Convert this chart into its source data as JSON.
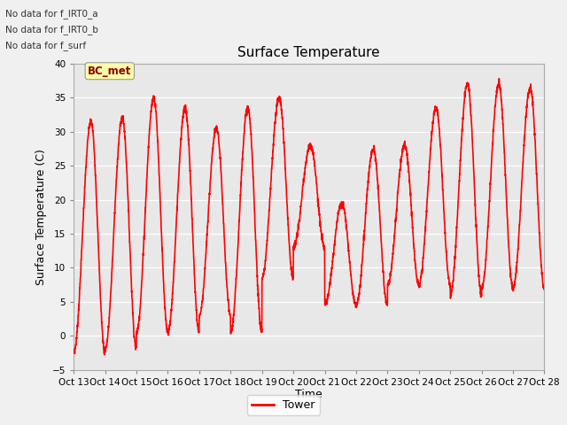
{
  "title": "Surface Temperature",
  "xlabel": "Time",
  "ylabel": "Surface Temperature (C)",
  "ylim": [
    -5,
    40
  ],
  "yticks": [
    -5,
    0,
    5,
    10,
    15,
    20,
    25,
    30,
    35,
    40
  ],
  "line_color": "#ff0000",
  "line_width": 1.2,
  "bg_color": "#f0f0f0",
  "plot_bg_color": "#e8e8e8",
  "legend_label": "Tower",
  "annotations_text": [
    "No data for f_IRT0_a",
    "No data for f_IRT0_b",
    "No data for f_surf"
  ],
  "bc_met_label": "BC_met",
  "x_tick_labels": [
    "Oct 13",
    "Oct 14",
    "Oct 15",
    "Oct 16",
    "Oct 17",
    "Oct 18",
    "Oct 19",
    "Oct 20",
    "Oct 21",
    "Oct 22",
    "Oct 23",
    "Oct 24",
    "Oct 25",
    "Oct 26",
    "Oct 27",
    "Oct 28"
  ],
  "x_tick_positions": [
    0,
    1,
    2,
    3,
    4,
    5,
    6,
    7,
    8,
    9,
    10,
    11,
    12,
    13,
    14,
    15
  ],
  "day_peaks": [
    31.5,
    32.0,
    35.0,
    33.5,
    30.5,
    33.5,
    35.0,
    28.0,
    19.5,
    27.5,
    28.0,
    33.5,
    37.0,
    37.0,
    36.5
  ],
  "day_troughs": [
    -2.5,
    -2.0,
    0.5,
    0.5,
    3.0,
    0.5,
    8.5,
    13.0,
    4.5,
    4.5,
    7.5,
    7.5,
    6.0,
    7.0,
    7.0
  ],
  "peak_phase": 0.55
}
